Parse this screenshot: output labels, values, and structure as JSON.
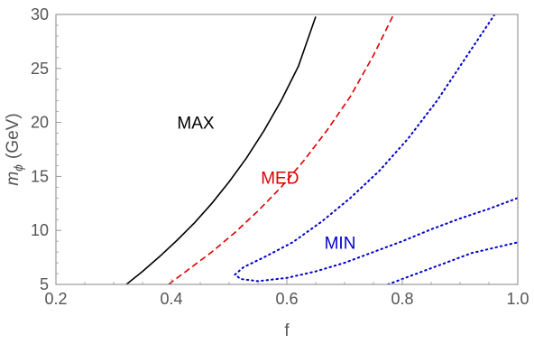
{
  "chart_data": {
    "type": "line",
    "title": "",
    "xlabel": "f",
    "ylabel": "m",
    "ylabel_subscript": "ϕ",
    "ylabel_unit": "(GeV)",
    "xlim": [
      0.2,
      1.0
    ],
    "ylim": [
      5,
      30
    ],
    "xticks": [
      "0.2",
      "0.4",
      "0.6",
      "0.8",
      "1.0"
    ],
    "yticks": [
      "5",
      "10",
      "15",
      "20",
      "25",
      "30"
    ],
    "grid": false,
    "legend": "none",
    "series": [
      {
        "name": "MAX",
        "style": "solid",
        "color": "#000000",
        "points": [
          [
            0.322,
            5.0
          ],
          [
            0.35,
            6.2
          ],
          [
            0.38,
            7.6
          ],
          [
            0.41,
            9.1
          ],
          [
            0.44,
            10.7
          ],
          [
            0.47,
            12.5
          ],
          [
            0.5,
            14.5
          ],
          [
            0.53,
            16.7
          ],
          [
            0.56,
            19.2
          ],
          [
            0.59,
            22.0
          ],
          [
            0.62,
            25.2
          ],
          [
            0.65,
            29.8
          ]
        ]
      },
      {
        "name": "MED",
        "style": "dashed",
        "color": "#dd0000",
        "points": [
          [
            0.395,
            5.0
          ],
          [
            0.43,
            6.4
          ],
          [
            0.47,
            8.0
          ],
          [
            0.51,
            9.8
          ],
          [
            0.55,
            11.8
          ],
          [
            0.59,
            14.0
          ],
          [
            0.63,
            16.5
          ],
          [
            0.67,
            19.3
          ],
          [
            0.71,
            22.4
          ],
          [
            0.75,
            26.2
          ],
          [
            0.785,
            30.0
          ]
        ]
      },
      {
        "name": "MIN",
        "style": "dotted",
        "color": "#0000cc",
        "points": [
          [
            0.96,
            30.0
          ],
          [
            0.91,
            26.0
          ],
          [
            0.86,
            22.0
          ],
          [
            0.81,
            18.5
          ],
          [
            0.76,
            15.5
          ],
          [
            0.71,
            13.0
          ],
          [
            0.66,
            10.8
          ],
          [
            0.61,
            8.9
          ],
          [
            0.56,
            7.5
          ],
          [
            0.525,
            6.6
          ],
          [
            0.51,
            5.9
          ],
          [
            0.52,
            5.5
          ],
          [
            0.55,
            5.3
          ],
          [
            0.6,
            5.6
          ],
          [
            0.65,
            6.2
          ],
          [
            0.7,
            7.0
          ],
          [
            0.75,
            8.0
          ],
          [
            0.8,
            9.0
          ],
          [
            0.85,
            10.1
          ],
          [
            0.9,
            11.1
          ],
          [
            0.95,
            12.0
          ],
          [
            1.0,
            13.0
          ]
        ]
      },
      {
        "name": "MIN",
        "style": "dotted",
        "color": "#0000cc",
        "points": [
          [
            0.775,
            5.0
          ],
          [
            0.82,
            5.9
          ],
          [
            0.87,
            6.9
          ],
          [
            0.92,
            7.9
          ],
          [
            0.96,
            8.4
          ],
          [
            1.0,
            8.9
          ]
        ]
      }
    ],
    "annotations": [
      {
        "text": "MAX",
        "x": 0.41,
        "y": 20.0,
        "color": "#000000"
      },
      {
        "text": "MED",
        "x": 0.555,
        "y": 14.9,
        "color": "#dd0000"
      },
      {
        "text": "MIN",
        "x": 0.665,
        "y": 8.9,
        "color": "#0000cc"
      }
    ]
  }
}
